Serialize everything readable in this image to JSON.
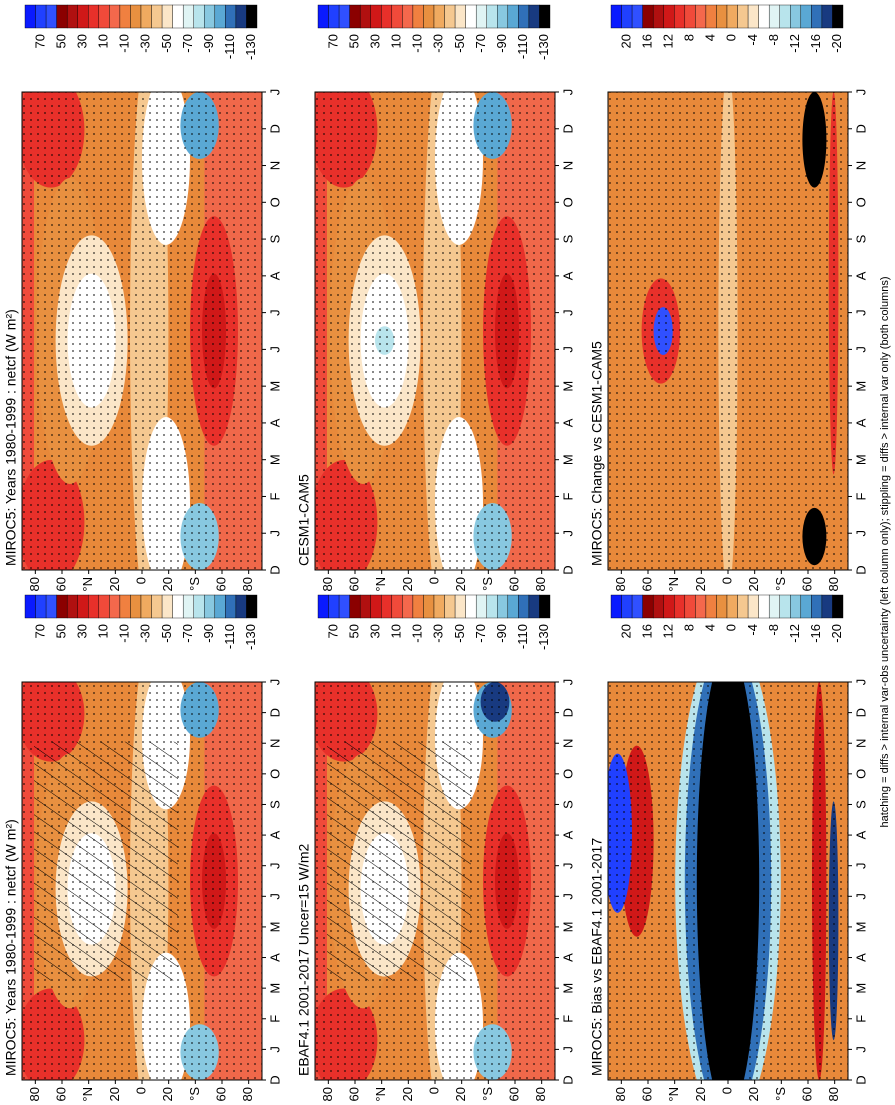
{
  "panels": [
    {
      "title": "MIROC5: Years 1980-1999 : netcf (W m²)",
      "colorbar_labels": [
        70,
        50,
        30,
        10,
        -10,
        -30,
        -50,
        -70,
        -90,
        -110,
        -130
      ]
    },
    {
      "title": "CESM1-CAM5",
      "colorbar_labels": [
        70,
        50,
        30,
        10,
        -10,
        -30,
        -50,
        -70,
        -90,
        -110,
        -130
      ]
    },
    {
      "title": "MIROC5: Change vs CESM1-CAM5",
      "colorbar_labels": [
        20,
        16,
        12,
        8,
        4,
        0,
        -4,
        -8,
        -12,
        -16,
        -20
      ]
    },
    {
      "title": "MIROC5: Years 1980-1999 : netcf (W m²)",
      "colorbar_labels": [
        70,
        50,
        30,
        10,
        -10,
        -30,
        -50,
        -70,
        -90,
        -110,
        -130
      ]
    },
    {
      "title": "EBAF4.1 2001-2017 Uncer=15 W/m2",
      "colorbar_labels": [
        70,
        50,
        30,
        10,
        -10,
        -30,
        -50,
        -70,
        -90,
        -110,
        -130
      ]
    },
    {
      "title": "MIROC5: Bias vs EBAF4.1 2001-2017",
      "colorbar_labels": [
        20,
        16,
        12,
        8,
        4,
        0,
        -4,
        -8,
        -12,
        -16,
        -20
      ]
    }
  ],
  "axes": {
    "months": [
      "D",
      "J",
      "F",
      "M",
      "A",
      "M",
      "J",
      "J",
      "A",
      "S",
      "O",
      "N",
      "D",
      "J"
    ],
    "lat_labels": [
      "80",
      "60",
      "°N",
      "20",
      "0",
      "20",
      "°S",
      "60",
      "80"
    ]
  },
  "footer": "hatching = diffs > internal var-obs uncertainty (left column only); stippling = diffs > internal var only (both columns)"
}
